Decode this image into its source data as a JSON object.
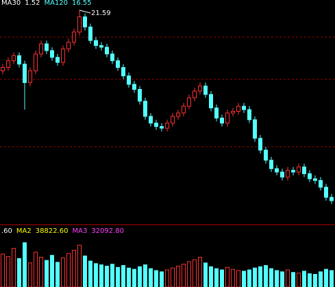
{
  "chart_data": [
    {
      "type": "candlestick",
      "indicator_labels": [
        {
          "text": "MA30",
          "color": "#ffffff"
        },
        {
          "text": "1.52",
          "color": "#ffffff"
        },
        {
          "text": "MA120",
          "color": "#54ffff"
        },
        {
          "text": "16.55",
          "color": "#54ffff"
        }
      ],
      "annotation": "21.59",
      "open": [
        18.0,
        18.2,
        18.6,
        18.9,
        18.4,
        17.3,
        18.0,
        19.0,
        19.6,
        19.2,
        18.8,
        18.5,
        19.3,
        19.7,
        20.3,
        21.2,
        20.6,
        19.8,
        19.5,
        19.4,
        19.0,
        18.6,
        18.2,
        17.7,
        17.2,
        16.9,
        16.2,
        15.3,
        14.9,
        14.7,
        14.6,
        14.9,
        15.3,
        15.5,
        15.9,
        16.4,
        16.8,
        17.1,
        16.6,
        15.8,
        15.2,
        14.9,
        15.5,
        15.6,
        15.9,
        15.7,
        15.1,
        14.0,
        13.3,
        12.7,
        12.2,
        12.0,
        11.7,
        12.1,
        12.0,
        12.3,
        11.9,
        11.6,
        11.5,
        11.1,
        10.5
      ],
      "high": [
        18.4,
        18.8,
        19.1,
        19.1,
        18.6,
        18.2,
        19.2,
        19.8,
        19.8,
        19.4,
        19.0,
        19.5,
        19.9,
        20.5,
        21.59,
        21.4,
        20.8,
        20.0,
        19.7,
        19.6,
        19.2,
        18.8,
        18.4,
        17.9,
        17.4,
        17.1,
        16.4,
        15.5,
        15.1,
        14.9,
        15.1,
        15.5,
        15.7,
        16.1,
        16.6,
        17.0,
        17.3,
        17.3,
        16.8,
        16.0,
        15.4,
        15.7,
        15.8,
        16.1,
        16.1,
        15.9,
        15.3,
        14.2,
        13.5,
        12.9,
        12.4,
        12.2,
        12.3,
        12.3,
        12.5,
        12.5,
        12.1,
        11.8,
        11.7,
        11.3,
        10.7
      ],
      "low": [
        17.8,
        18.0,
        18.4,
        18.2,
        15.7,
        17.1,
        17.8,
        18.8,
        19.0,
        18.6,
        18.3,
        18.3,
        19.1,
        19.5,
        20.1,
        20.4,
        19.6,
        19.3,
        19.2,
        18.8,
        18.4,
        18.0,
        17.5,
        17.0,
        16.7,
        16.0,
        15.1,
        14.7,
        14.5,
        14.4,
        14.4,
        14.7,
        15.1,
        15.3,
        15.7,
        16.2,
        16.6,
        16.4,
        15.6,
        15.0,
        14.7,
        14.7,
        15.3,
        15.4,
        15.5,
        14.9,
        13.8,
        13.1,
        12.5,
        12.0,
        11.8,
        11.5,
        11.5,
        11.8,
        11.8,
        11.7,
        11.4,
        11.3,
        10.9,
        10.3,
        10.1
      ],
      "close": [
        18.2,
        18.6,
        18.9,
        18.4,
        17.3,
        18.0,
        19.0,
        19.6,
        19.2,
        18.8,
        18.5,
        19.3,
        19.7,
        20.3,
        21.2,
        20.6,
        19.8,
        19.5,
        19.4,
        19.0,
        18.6,
        18.2,
        17.7,
        17.2,
        16.9,
        16.2,
        15.3,
        14.9,
        14.7,
        14.6,
        14.9,
        15.3,
        15.5,
        15.9,
        16.4,
        16.8,
        17.1,
        16.6,
        15.8,
        15.2,
        14.9,
        15.5,
        15.6,
        15.9,
        15.7,
        15.1,
        14.0,
        13.3,
        12.7,
        12.2,
        12.0,
        11.7,
        12.1,
        12.0,
        12.3,
        11.9,
        11.6,
        11.5,
        11.1,
        10.5,
        10.3
      ],
      "ylim": [
        9,
        22.2
      ],
      "yticks": [
        13.5,
        17.5,
        20
      ],
      "grid": true,
      "up_color": "#ff3232",
      "down_color": "#54ffff",
      "grid_color": "#a00000"
    },
    {
      "type": "bar",
      "indicator_labels": [
        {
          "text": ".60",
          "color": "#ffffff"
        },
        {
          "text": "MA2",
          "color": "#ffff00"
        },
        {
          "text": "38822.60",
          "color": "#ffff00"
        },
        {
          "text": "MA3",
          "color": "#ff40ff"
        },
        {
          "text": "32092.80",
          "color": "#ff40ff"
        }
      ],
      "values": [
        52000,
        48000,
        61000,
        45000,
        70000,
        38000,
        55000,
        47000,
        42000,
        50000,
        39000,
        46000,
        53000,
        58000,
        66000,
        49000,
        41000,
        37000,
        35000,
        33000,
        36000,
        31000,
        34000,
        30000,
        28000,
        32000,
        35000,
        29000,
        26000,
        24000,
        27000,
        30000,
        33000,
        36000,
        40000,
        43000,
        47000,
        38000,
        32000,
        29000,
        27000,
        31000,
        28000,
        26000,
        25000,
        27000,
        30000,
        32000,
        34000,
        29000,
        26000,
        24000,
        27000,
        23000,
        22000,
        25000,
        21000,
        20000,
        24000,
        28000,
        26000
      ],
      "ylim": [
        0,
        80000
      ]
    }
  ]
}
